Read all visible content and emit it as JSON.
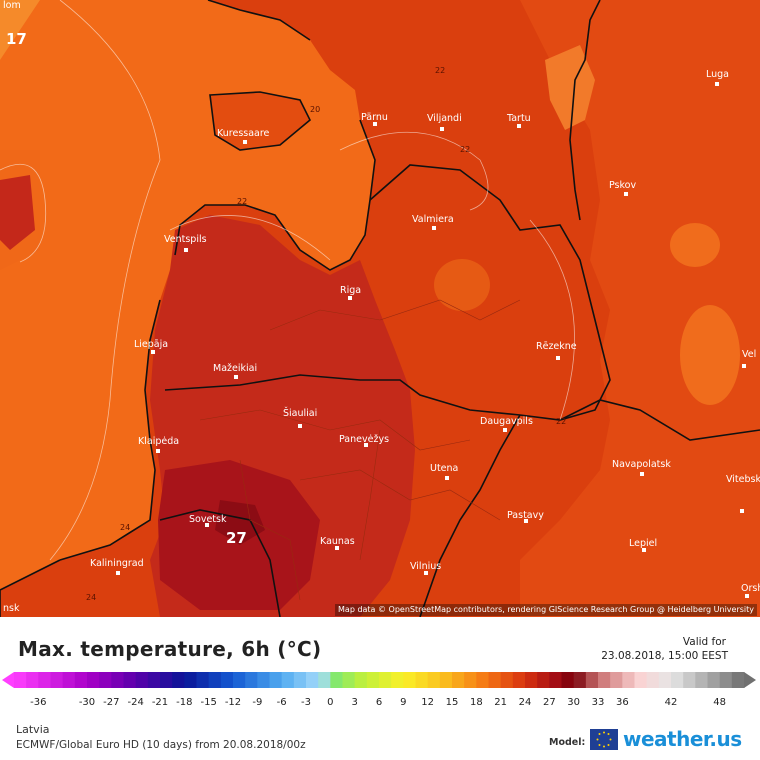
{
  "map": {
    "attribution": "Map data © OpenStreetMap contributors, rendering GIScience Research Group @ Heidelberg University",
    "corner_labels": {
      "top_left_partial": "lom",
      "bottom_left_partial": "nsk"
    },
    "extreme_labels": {
      "min_value": "17",
      "max_value": "27"
    },
    "cities": [
      {
        "name": "Pärnu"
      },
      {
        "name": "Viljandi"
      },
      {
        "name": "Tartu"
      },
      {
        "name": "Luga"
      },
      {
        "name": "Kuressaare"
      },
      {
        "name": "Pskov"
      },
      {
        "name": "Valmiera"
      },
      {
        "name": "Ventspils"
      },
      {
        "name": "Riga"
      },
      {
        "name": "Liepāja"
      },
      {
        "name": "Rēzekne"
      },
      {
        "name": "Mažeikiai"
      },
      {
        "name": "Šiauliai"
      },
      {
        "name": "Klaipėda"
      },
      {
        "name": "Panevėžys"
      },
      {
        "name": "Daugavpils"
      },
      {
        "name": "Utena"
      },
      {
        "name": "Navapolatsk"
      },
      {
        "name": "Vitebsk"
      },
      {
        "name": "Sovetsk"
      },
      {
        "name": "Pastavy"
      },
      {
        "name": "Kaunas"
      },
      {
        "name": "Lepiel"
      },
      {
        "name": "Kaliningrad"
      },
      {
        "name": "Vilnius"
      },
      {
        "name": "Orsha"
      },
      {
        "name": "Vel"
      }
    ],
    "isotherm_labels": [
      "20",
      "22",
      "22",
      "22",
      "22",
      "24",
      "24"
    ]
  },
  "footer": {
    "title": "Max. temperature, 6h (°C)",
    "valid_label": "Valid for",
    "valid_datetime": "23.08.2018, 15:00 EEST",
    "region": "Latvia",
    "model_run": "ECMWF/Global Euro HD (10 days) from 20.08.2018/00z",
    "model_label": "Model:",
    "brand": "weather.us"
  },
  "colorscale": {
    "min": -39,
    "max": 51,
    "step": 1.5,
    "tick_values": [
      "-36",
      "-30",
      "-27",
      "-24",
      "-21",
      "-18",
      "-15",
      "-12",
      "-9",
      "-6",
      "-3",
      "0",
      "3",
      "6",
      "9",
      "12",
      "15",
      "18",
      "21",
      "24",
      "27",
      "30",
      "33",
      "36",
      "42",
      "48"
    ]
  },
  "colors": {
    "sea": "#f46a16",
    "land_warm": "#d93b0f",
    "land_hot": "#b41e1e",
    "hot_core": "#8f0f14",
    "border": "#111111",
    "brand_blue": "#1a8fd8"
  }
}
